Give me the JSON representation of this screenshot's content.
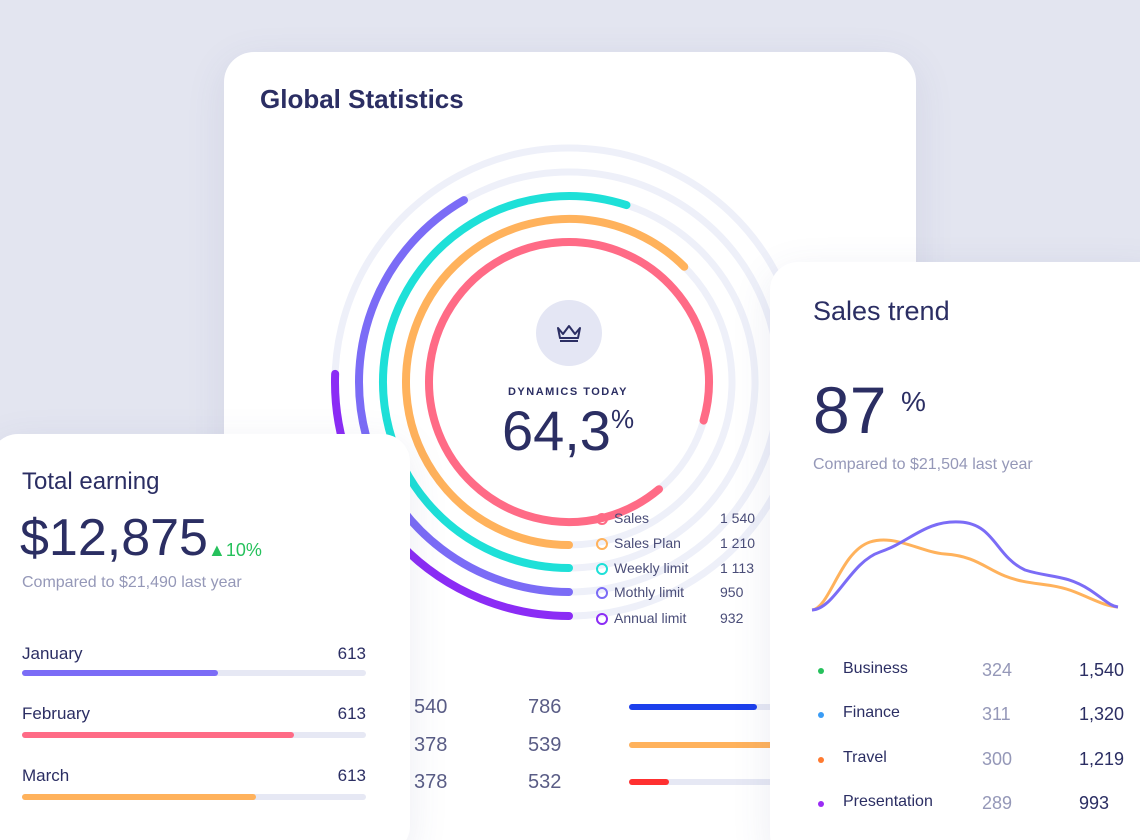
{
  "global_statistics": {
    "title": "Global Statistics",
    "dynamics_label": "DYNAMICS TODAY",
    "dynamics_value": "64,3",
    "dynamics_unit": "%",
    "legend": [
      {
        "label": "Sales",
        "value": "1 540",
        "color": "#ff6b86"
      },
      {
        "label": "Sales Plan",
        "value": "1 210",
        "color": "#ffb25c"
      },
      {
        "label": "Weekly limit",
        "value": "1 113",
        "color": "#1ee0d8"
      },
      {
        "label": "Mothly limit",
        "value": "950",
        "color": "#7b6cf6"
      },
      {
        "label": "Annual limit",
        "value": "932",
        "color": "#8b2cf5"
      }
    ],
    "table_rows": [
      {
        "a": "540",
        "b": "786",
        "bar_color": "#1c3fec",
        "fill": 0.8
      },
      {
        "a": "378",
        "b": "539",
        "bar_color": "#ffb25c",
        "fill": 1.0
      },
      {
        "a": "378",
        "b": "532",
        "bar_color": "#ff3030",
        "fill": 0.25
      }
    ]
  },
  "total_earning": {
    "title": "Total earning",
    "amount": "$12,875",
    "change_icon": "triangle-up-icon",
    "change": "10%",
    "compared": "Compared to $21,490 last year",
    "months": [
      {
        "label": "January",
        "value": "613",
        "color": "#7b6cf6",
        "fill": 0.57
      },
      {
        "label": "February",
        "value": "613",
        "color": "#ff6b86",
        "fill": 0.79
      },
      {
        "label": "March",
        "value": "613",
        "color": "#ffb25c",
        "fill": 0.68
      }
    ]
  },
  "sales_trend": {
    "title": "Sales trend",
    "percent": "87",
    "percent_sign": "%",
    "compared": "Compared to $21,504 last year",
    "categories": [
      {
        "label": "Business",
        "mid": "324",
        "total": "1,540",
        "color": "#26c15c"
      },
      {
        "label": "Finance",
        "mid": "311",
        "total": "1,320",
        "color": "#3a9cf5"
      },
      {
        "label": "Travel",
        "mid": "300",
        "total": "1,219",
        "color": "#ff7a30"
      },
      {
        "label": "Presentation",
        "mid": "289",
        "total": "993",
        "color": "#9b2cf5"
      }
    ]
  }
}
